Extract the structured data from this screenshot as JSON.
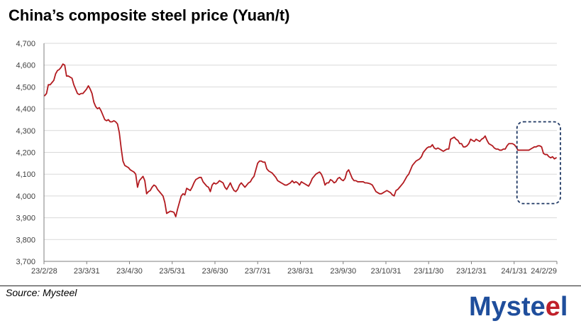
{
  "title": "China’s composite steel price (Yuan/t)",
  "source": "Source: Mysteel",
  "logo_text": "Mysteel",
  "colors": {
    "line": "#b21a1f",
    "grid": "#d9d9d9",
    "highlight_box": "#1f3864",
    "logo_blue": "#1f4e9c",
    "logo_red": "#c0202a"
  },
  "chart_data": {
    "type": "line",
    "title": "China’s composite steel price (Yuan/t)",
    "xlabel": "",
    "ylabel": "",
    "ylim": [
      3700,
      4700
    ],
    "yticks": [
      3700,
      3800,
      3900,
      4000,
      4100,
      4200,
      4300,
      4400,
      4500,
      4600,
      4700
    ],
    "ytick_labels": [
      "3,700",
      "3,800",
      "3,900",
      "4,000",
      "4,100",
      "4,200",
      "4,300",
      "4,400",
      "4,500",
      "4,600",
      "4,700"
    ],
    "xtick_labels": [
      "23/2/28",
      "23/3/31",
      "23/4/30",
      "23/5/31",
      "23/6/30",
      "23/7/31",
      "23/8/31",
      "23/9/30",
      "23/10/31",
      "23/11/30",
      "23/12/31",
      "24/1/31",
      "24/2/29"
    ],
    "grid": "horizontal",
    "highlight": {
      "from": "24/1/31",
      "to": "24/2/29",
      "style": "dashed rounded box"
    },
    "series": [
      {
        "values": [
          4460,
          4470,
          4510,
          4510,
          4520,
          4530,
          4560,
          4575,
          4580,
          4590,
          4605,
          4600,
          4550,
          4550,
          4545,
          4540,
          4510,
          4490,
          4470,
          4465,
          4470,
          4470,
          4480,
          4490,
          4505,
          4490,
          4470,
          4430,
          4410,
          4400,
          4405,
          4390,
          4370,
          4350,
          4345,
          4350,
          4340,
          4340,
          4345,
          4340,
          4330,
          4290,
          4220,
          4160,
          4140,
          4135,
          4130,
          4120,
          4115,
          4110,
          4100,
          4040,
          4070,
          4080,
          4090,
          4070,
          4010,
          4020,
          4025,
          4040,
          4050,
          4045,
          4030,
          4020,
          4010,
          4000,
          3970,
          3920,
          3925,
          3930,
          3928,
          3925,
          3905,
          3940,
          3970,
          4000,
          4010,
          4005,
          4035,
          4030,
          4025,
          4040,
          4060,
          4075,
          4080,
          4085,
          4085,
          4065,
          4055,
          4045,
          4040,
          4020,
          4050,
          4060,
          4055,
          4060,
          4070,
          4065,
          4060,
          4040,
          4030,
          4045,
          4060,
          4040,
          4025,
          4020,
          4030,
          4050,
          4060,
          4050,
          4040,
          4050,
          4060,
          4065,
          4080,
          4090,
          4120,
          4150,
          4160,
          4160,
          4155,
          4155,
          4125,
          4115,
          4110,
          4105,
          4095,
          4085,
          4070,
          4065,
          4060,
          4055,
          4050,
          4050,
          4055,
          4060,
          4070,
          4060,
          4065,
          4060,
          4050,
          4065,
          4060,
          4055,
          4050,
          4045,
          4060,
          4080,
          4090,
          4100,
          4105,
          4110,
          4100,
          4080,
          4050,
          4060,
          4060,
          4075,
          4070,
          4060,
          4065,
          4080,
          4085,
          4075,
          4070,
          4080,
          4110,
          4120,
          4100,
          4080,
          4070,
          4070,
          4065,
          4065,
          4065,
          4065,
          4060,
          4060,
          4058,
          4055,
          4050,
          4035,
          4020,
          4015,
          4010,
          4010,
          4015,
          4020,
          4025,
          4020,
          4015,
          4005,
          4000,
          4025,
          4030,
          4040,
          4050,
          4060,
          4075,
          4090,
          4100,
          4120,
          4140,
          4150,
          4160,
          4165,
          4170,
          4180,
          4200,
          4210,
          4220,
          4225,
          4225,
          4235,
          4220,
          4215,
          4220,
          4215,
          4210,
          4205,
          4210,
          4215,
          4215,
          4260,
          4265,
          4270,
          4260,
          4255,
          4240,
          4240,
          4225,
          4225,
          4230,
          4240,
          4260,
          4255,
          4250,
          4260,
          4255,
          4250,
          4260,
          4265,
          4275,
          4255,
          4240,
          4235,
          4230,
          4220,
          4215,
          4215,
          4210,
          4210,
          4215,
          4215,
          4230,
          4240,
          4240,
          4240,
          4235,
          4225,
          4210,
          4210,
          4210,
          4210,
          4210,
          4210,
          4210,
          4215,
          4220,
          4225,
          4225,
          4230,
          4230,
          4225,
          4195,
          4190,
          4190,
          4180,
          4175,
          4180,
          4170,
          4175
        ]
      }
    ]
  }
}
